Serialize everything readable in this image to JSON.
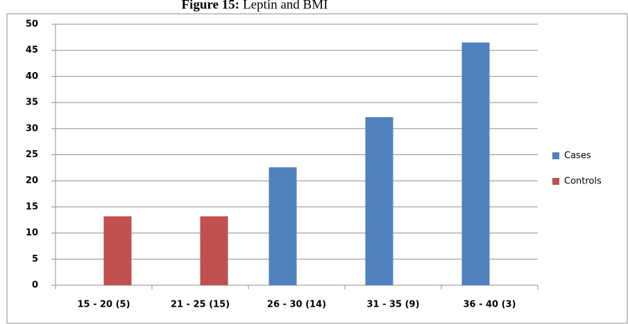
{
  "chart_data": {
    "type": "bar",
    "title_label": "Figure 15:",
    "title": "Leptin and BMI",
    "categories": [
      "15 - 20 (5)",
      "21 - 25 (15)",
      "26 - 30 (14)",
      "31 - 35 (9)",
      "36 - 40 (3)"
    ],
    "series": [
      {
        "name": "Cases",
        "color": "#4f81bd",
        "values": [
          null,
          null,
          22.6,
          32.2,
          46.5
        ]
      },
      {
        "name": "Controls",
        "color": "#c0504d",
        "values": [
          13.2,
          13.2,
          null,
          null,
          null
        ]
      }
    ],
    "ylim": [
      0,
      50
    ],
    "yticks": [
      0,
      5,
      10,
      15,
      20,
      25,
      30,
      35,
      40,
      45,
      50
    ],
    "grid": true,
    "legend": "right"
  }
}
